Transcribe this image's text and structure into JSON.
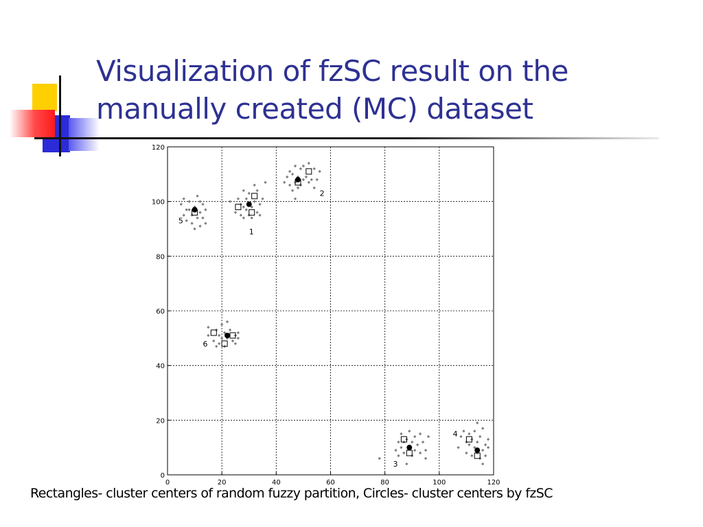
{
  "slide": {
    "title_line1": "Visualization of fzSC result on the",
    "title_line2": "manually created (MC) dataset",
    "caption": "Rectangles- cluster centers of random fuzzy partition, Circles- cluster centers by fzSC"
  },
  "chart_data": {
    "type": "scatter",
    "title": "",
    "xlabel": "",
    "ylabel": "",
    "xlim": [
      0,
      120
    ],
    "ylim": [
      0,
      120
    ],
    "xticks": [
      0,
      20,
      40,
      60,
      80,
      100,
      120
    ],
    "yticks": [
      0,
      20,
      40,
      60,
      80,
      100,
      120
    ],
    "grid": true,
    "colors": {
      "points": "#808080",
      "centers": "#000000",
      "frame": "#000000"
    },
    "series": [
      {
        "marker": "small-diamond",
        "points": [
          [
            5,
            99
          ],
          [
            6,
            95
          ],
          [
            6,
            101
          ],
          [
            7,
            93
          ],
          [
            8,
            97
          ],
          [
            8,
            100
          ],
          [
            9,
            92
          ],
          [
            9,
            95
          ],
          [
            10,
            90
          ],
          [
            10,
            98
          ],
          [
            11,
            94
          ],
          [
            11,
            102
          ],
          [
            12,
            91
          ],
          [
            12,
            96
          ],
          [
            13,
            99
          ],
          [
            13,
            94
          ],
          [
            14,
            97
          ],
          [
            14,
            92
          ],
          [
            7,
            97
          ],
          [
            12,
            100
          ],
          [
            23,
            100
          ],
          [
            25,
            96
          ],
          [
            26,
            101
          ],
          [
            27,
            95
          ],
          [
            27,
            99
          ],
          [
            28,
            94
          ],
          [
            28,
            98
          ],
          [
            29,
            97
          ],
          [
            29,
            101
          ],
          [
            30,
            95
          ],
          [
            30,
            103
          ],
          [
            31,
            98
          ],
          [
            31,
            94
          ],
          [
            32,
            100
          ],
          [
            33,
            96
          ],
          [
            33,
            104
          ],
          [
            34,
            99
          ],
          [
            35,
            101
          ],
          [
            36,
            107
          ],
          [
            32,
            106
          ],
          [
            28,
            104
          ],
          [
            34,
            95
          ],
          [
            44,
            109
          ],
          [
            45,
            106
          ],
          [
            45,
            111
          ],
          [
            46,
            104
          ],
          [
            46,
            110
          ],
          [
            47,
            107
          ],
          [
            47,
            113
          ],
          [
            48,
            105
          ],
          [
            48,
            109
          ],
          [
            49,
            106
          ],
          [
            49,
            112
          ],
          [
            50,
            108
          ],
          [
            50,
            113
          ],
          [
            51,
            109
          ],
          [
            52,
            107
          ],
          [
            52,
            114
          ],
          [
            53,
            108
          ],
          [
            54,
            112
          ],
          [
            55,
            108
          ],
          [
            56,
            111
          ],
          [
            54,
            105
          ],
          [
            43,
            107
          ],
          [
            47,
            101
          ],
          [
            15,
            54
          ],
          [
            15,
            51
          ],
          [
            17,
            49
          ],
          [
            18,
            53
          ],
          [
            19,
            48
          ],
          [
            19,
            51
          ],
          [
            20,
            55
          ],
          [
            20,
            50
          ],
          [
            21,
            52
          ],
          [
            21,
            47
          ],
          [
            22,
            50
          ],
          [
            23,
            53
          ],
          [
            24,
            49
          ],
          [
            25,
            51
          ],
          [
            25,
            48
          ],
          [
            26,
            52
          ],
          [
            26,
            50
          ],
          [
            22,
            56
          ],
          [
            18,
            47
          ],
          [
            78,
            6
          ],
          [
            84,
            9
          ],
          [
            85,
            7
          ],
          [
            85,
            12
          ],
          [
            86,
            10
          ],
          [
            86,
            15
          ],
          [
            87,
            8
          ],
          [
            87,
            12
          ],
          [
            88,
            13
          ],
          [
            88,
            4
          ],
          [
            89,
            10
          ],
          [
            89,
            16
          ],
          [
            90,
            7
          ],
          [
            90,
            12
          ],
          [
            91,
            9
          ],
          [
            91,
            14
          ],
          [
            92,
            11
          ],
          [
            93,
            15
          ],
          [
            93,
            8
          ],
          [
            94,
            12
          ],
          [
            95,
            9
          ],
          [
            96,
            14
          ],
          [
            95,
            6
          ],
          [
            107,
            10
          ],
          [
            108,
            14
          ],
          [
            110,
            12
          ],
          [
            110,
            8
          ],
          [
            111,
            11
          ],
          [
            111,
            15
          ],
          [
            112,
            7
          ],
          [
            112,
            13
          ],
          [
            113,
            10
          ],
          [
            113,
            16
          ],
          [
            114,
            8
          ],
          [
            114,
            12
          ],
          [
            115,
            6
          ],
          [
            115,
            14
          ],
          [
            116,
            9
          ],
          [
            116,
            4
          ],
          [
            117,
            11
          ],
          [
            117,
            7
          ],
          [
            118,
            10
          ],
          [
            118,
            13
          ],
          [
            114,
            19
          ],
          [
            109,
            16
          ],
          [
            116,
            17
          ]
        ]
      },
      {
        "name": "Rectangles- cluster centers of random fuzzy partition",
        "marker": "square",
        "points": [
          [
            10,
            96
          ],
          [
            26,
            98
          ],
          [
            31,
            96
          ],
          [
            32,
            102
          ],
          [
            48,
            107
          ],
          [
            52,
            111
          ],
          [
            17,
            52
          ],
          [
            21,
            48
          ],
          [
            24,
            51
          ],
          [
            87,
            13
          ],
          [
            89,
            8
          ],
          [
            111,
            13
          ],
          [
            114,
            7
          ]
        ]
      },
      {
        "name": "Circles- cluster centers by fzSC",
        "marker": "filled-circle",
        "points": [
          [
            10,
            97
          ],
          [
            30,
            99
          ],
          [
            48,
            108
          ],
          [
            22,
            51
          ],
          [
            89,
            10
          ],
          [
            114,
            9
          ]
        ]
      }
    ],
    "annotations": [
      {
        "text": "1",
        "x": 30,
        "y": 88
      },
      {
        "text": "2",
        "x": 56,
        "y": 102
      },
      {
        "text": "3",
        "x": 83,
        "y": 3
      },
      {
        "text": "4",
        "x": 105,
        "y": 14
      },
      {
        "text": "5",
        "x": 4,
        "y": 92
      },
      {
        "text": "6",
        "x": 13,
        "y": 47
      }
    ]
  }
}
